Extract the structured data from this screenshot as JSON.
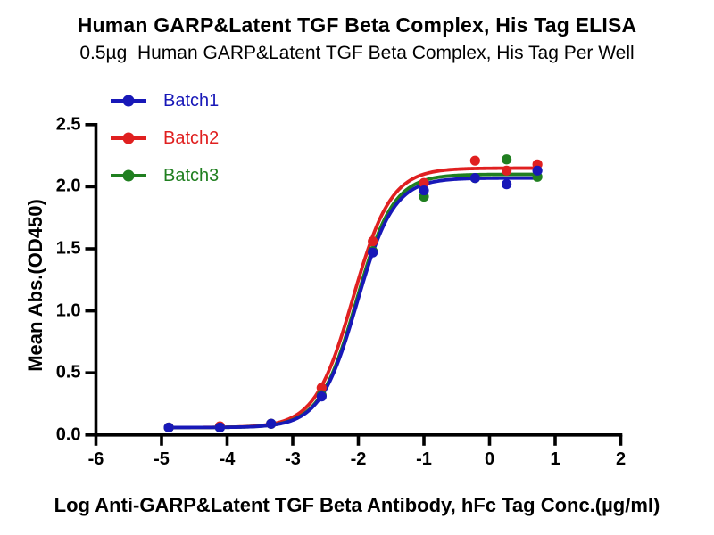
{
  "title": "Human GARP&Latent TGF Beta Complex, His Tag ELISA",
  "subtitle": "0.5µg  Human GARP&Latent TGF Beta Complex, His Tag Per Well",
  "x_axis_label": "Log Anti-GARP&Latent TGF Beta Antibody, hFc Tag Conc.(µg/ml)",
  "y_axis_label": "Mean Abs.(OD450)",
  "axis_color": "#000000",
  "chart_data": {
    "type": "line",
    "title": "Human GARP&Latent TGF Beta Complex, His Tag ELISA",
    "xlabel": "Log Anti-GARP&Latent TGF Beta Antibody, hFc Tag Conc.(µg/ml)",
    "ylabel": "Mean Abs.(OD450)",
    "xlim": [
      -6,
      2
    ],
    "ylim": [
      0,
      2.5
    ],
    "x_ticks": [
      -6,
      -5,
      -4,
      -3,
      -2,
      -1,
      0,
      1,
      2
    ],
    "x_tick_labels": [
      "-6",
      "-5",
      "-4",
      "-3",
      "-2",
      "-1",
      "0",
      "1",
      "2"
    ],
    "y_ticks": [
      0,
      0.5,
      1.0,
      1.5,
      2.0,
      2.5
    ],
    "y_tick_labels": [
      "0.0",
      "0.5",
      "1.0",
      "1.5",
      "2.0",
      "2.5"
    ],
    "grid": false,
    "legend_position": "inside-top-left",
    "x": [
      -4.89,
      -4.11,
      -3.33,
      -2.56,
      -1.78,
      -1.0,
      -0.22,
      0.26,
      0.73
    ],
    "series": [
      {
        "name": "Batch1",
        "color": "#1818B8",
        "values": [
          0.06,
          0.06,
          0.09,
          0.31,
          1.47,
          1.97,
          2.07,
          2.02,
          2.13
        ],
        "fit": {
          "bottom": 0.06,
          "top": 2.07,
          "logEC50": -2.02,
          "hill": 1.55
        }
      },
      {
        "name": "Batch2",
        "color": "#E02020",
        "values": [
          0.06,
          0.07,
          0.09,
          0.38,
          1.56,
          2.03,
          2.21,
          2.13,
          2.18
        ],
        "fit": {
          "bottom": 0.06,
          "top": 2.15,
          "logEC50": -2.08,
          "hill": 1.5
        }
      },
      {
        "name": "Batch3",
        "color": "#207F20",
        "values": [
          0.06,
          0.06,
          0.09,
          0.32,
          1.48,
          1.92,
          2.07,
          2.22,
          2.08
        ],
        "fit": {
          "bottom": 0.06,
          "top": 2.1,
          "logEC50": -2.03,
          "hill": 1.55
        }
      }
    ]
  }
}
